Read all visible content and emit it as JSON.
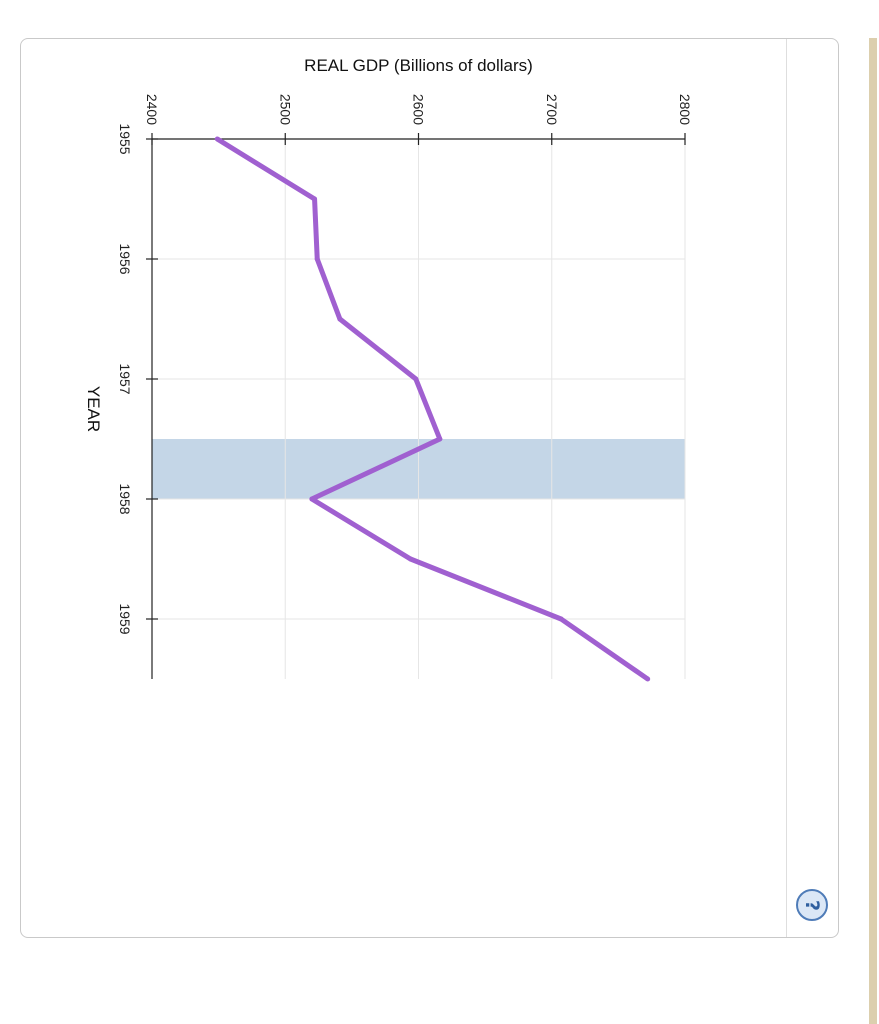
{
  "chart_data": {
    "type": "line",
    "orientation": "rotated-90-clockwise",
    "xlabel": "YEAR",
    "ylabel": "REAL GDP (Billions of dollars)",
    "x_ticks": [
      "1955",
      "1956",
      "1957",
      "1958",
      "1959"
    ],
    "y_ticks": [
      "2400",
      "2500",
      "2600",
      "2700",
      "2800"
    ],
    "xlim": [
      1955.0,
      1959.5
    ],
    "ylim": [
      2400,
      2800
    ],
    "grid": true,
    "shaded_region": {
      "x_start": 1957.5,
      "x_end": 1958.0,
      "color": "#c4d6e7"
    },
    "series": [
      {
        "color": "#a060d0",
        "x": [
          1955.0,
          1955.5,
          1956.0,
          1956.5,
          1957.0,
          1957.5,
          1958.0,
          1958.5,
          1959.0,
          1959.5
        ],
        "values": [
          2449,
          2522,
          2524,
          2541,
          2598,
          2616,
          2520,
          2594,
          2707,
          2772
        ]
      }
    ]
  },
  "help": {
    "label": "?"
  }
}
